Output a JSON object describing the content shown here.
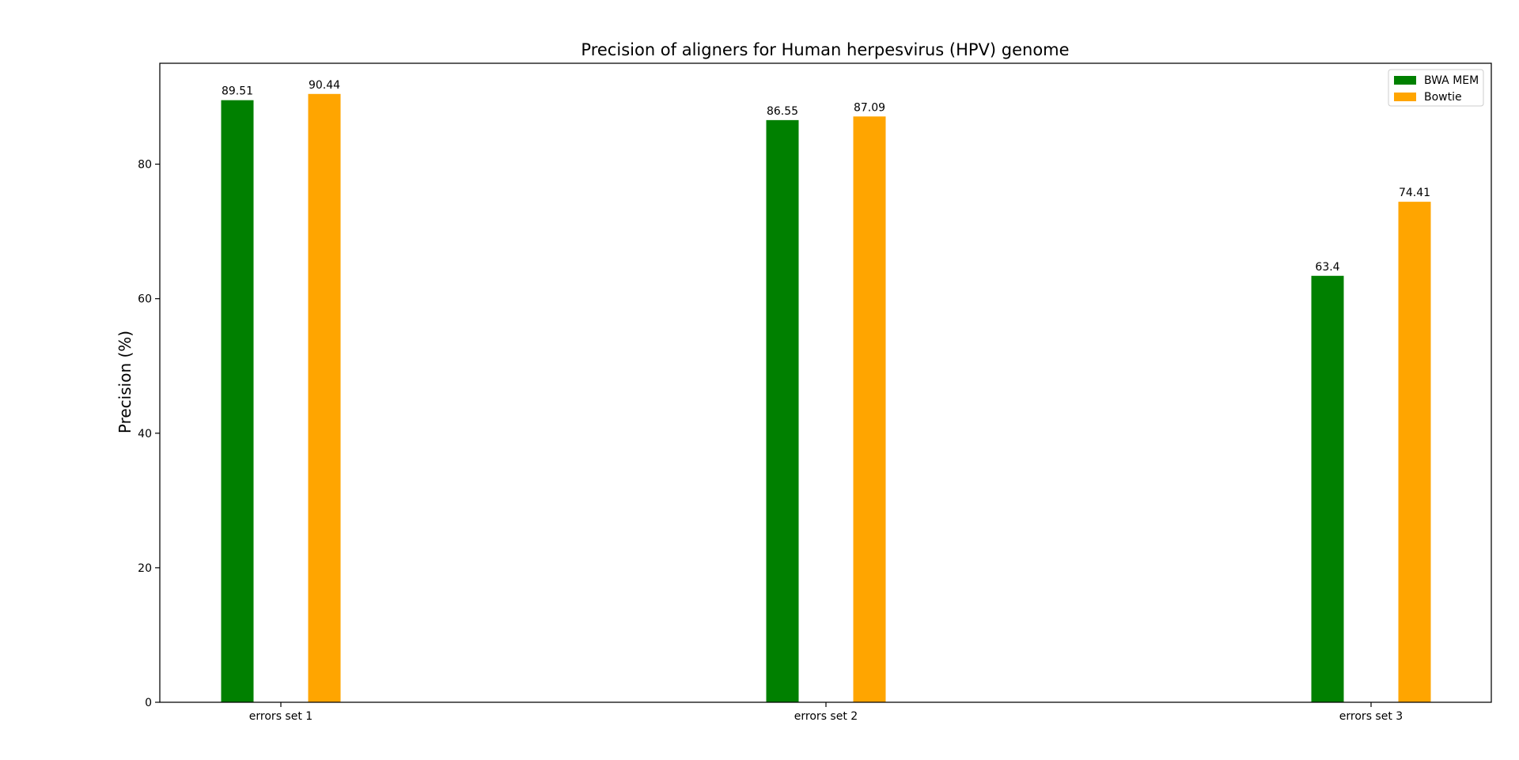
{
  "chart_data": {
    "type": "bar",
    "title": "Precision of aligners for Human herpesvirus (HPV) genome",
    "xlabel": "",
    "ylabel": "Precision (%)",
    "categories": [
      "errors set 1",
      "errors set 2",
      "errors set 3"
    ],
    "series": [
      {
        "name": "BWA MEM",
        "color": "#008000",
        "values": [
          89.51,
          86.55,
          63.4
        ],
        "labels": [
          "89.51",
          "86.55",
          "63.4"
        ]
      },
      {
        "name": "Bowtie",
        "color": "#FFA500",
        "values": [
          90.44,
          87.09,
          74.41
        ],
        "labels": [
          "90.44",
          "87.09",
          "74.41"
        ]
      }
    ],
    "ylim": [
      0,
      95
    ],
    "yticks": [
      0,
      20,
      40,
      60,
      80
    ],
    "ytick_labels": [
      "0",
      "20",
      "40",
      "60",
      "80"
    ],
    "grid": false,
    "legend_position": "top-right"
  }
}
